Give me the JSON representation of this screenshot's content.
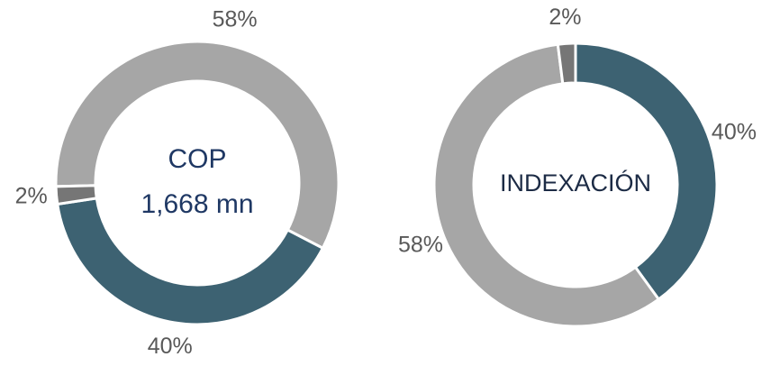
{
  "chart_data": [
    {
      "type": "donut",
      "center_text": [
        "COP",
        "1,668 mn"
      ],
      "categories": [
        null,
        null,
        null
      ],
      "values": [
        58,
        40,
        2
      ],
      "value_labels": [
        "58%",
        "40%",
        "2%"
      ],
      "colors": [
        "#a6a6a6",
        "#3d6272",
        "#767676"
      ]
    },
    {
      "type": "donut",
      "center_text": [
        "INDEXACIÓN"
      ],
      "categories": [
        null,
        null,
        null
      ],
      "values": [
        40,
        58,
        2
      ],
      "value_labels": [
        "40%",
        "58%",
        "2%"
      ],
      "colors": [
        "#3d6272",
        "#a6a6a6",
        "#767676"
      ]
    }
  ]
}
